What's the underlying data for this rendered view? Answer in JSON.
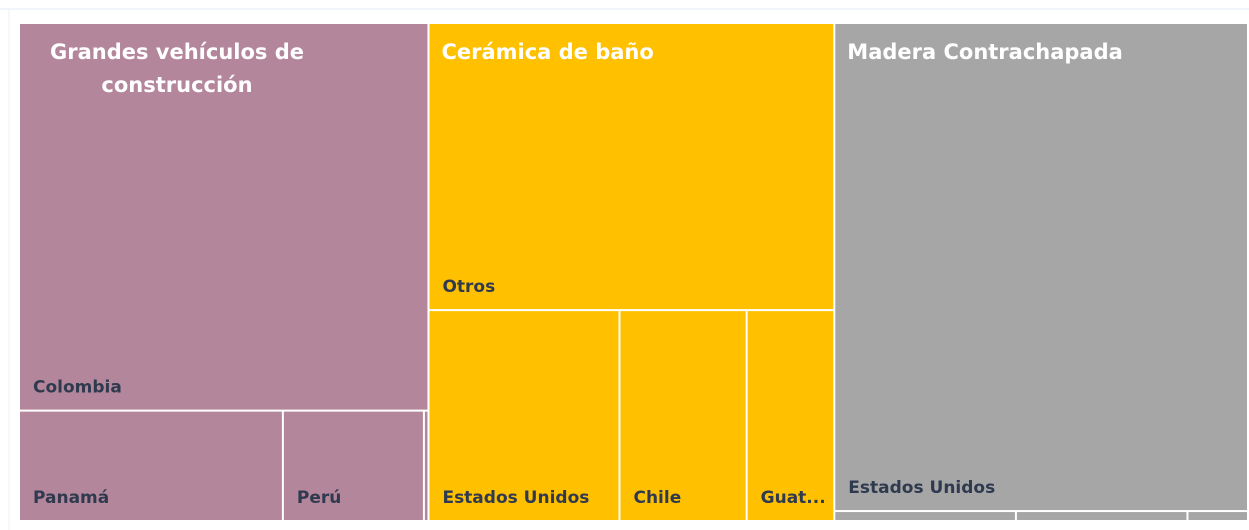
{
  "chart_data": {
    "type": "treemap",
    "groups": [
      {
        "name": "Grandes vehículos de construcción",
        "color": "#b3869b",
        "children": [
          {
            "name": "Colombia",
            "value": 158
          },
          {
            "name": "Panamá",
            "value": 29
          },
          {
            "name": "Perú",
            "value": 15.5
          },
          {
            "name": null,
            "value": 0.5
          }
        ]
      },
      {
        "name": "Cerámica de baño",
        "color": "#ffc000",
        "children": [
          {
            "name": "Otros",
            "value": 116
          },
          {
            "name": "Estados Unidos",
            "value": 40.1
          },
          {
            "name": "Chile",
            "value": 26.7
          },
          {
            "name": "Guat...",
            "value": 18.4
          }
        ]
      },
      {
        "name": "Madera Contrachapada",
        "color": "#a6a6a6",
        "children": [
          {
            "name": "Estados Unidos",
            "value": 201
          },
          {
            "name": null,
            "value": 1.8
          },
          {
            "name": null,
            "value": 1.7
          },
          {
            "name": null,
            "value": 0.6
          }
        ]
      }
    ]
  }
}
